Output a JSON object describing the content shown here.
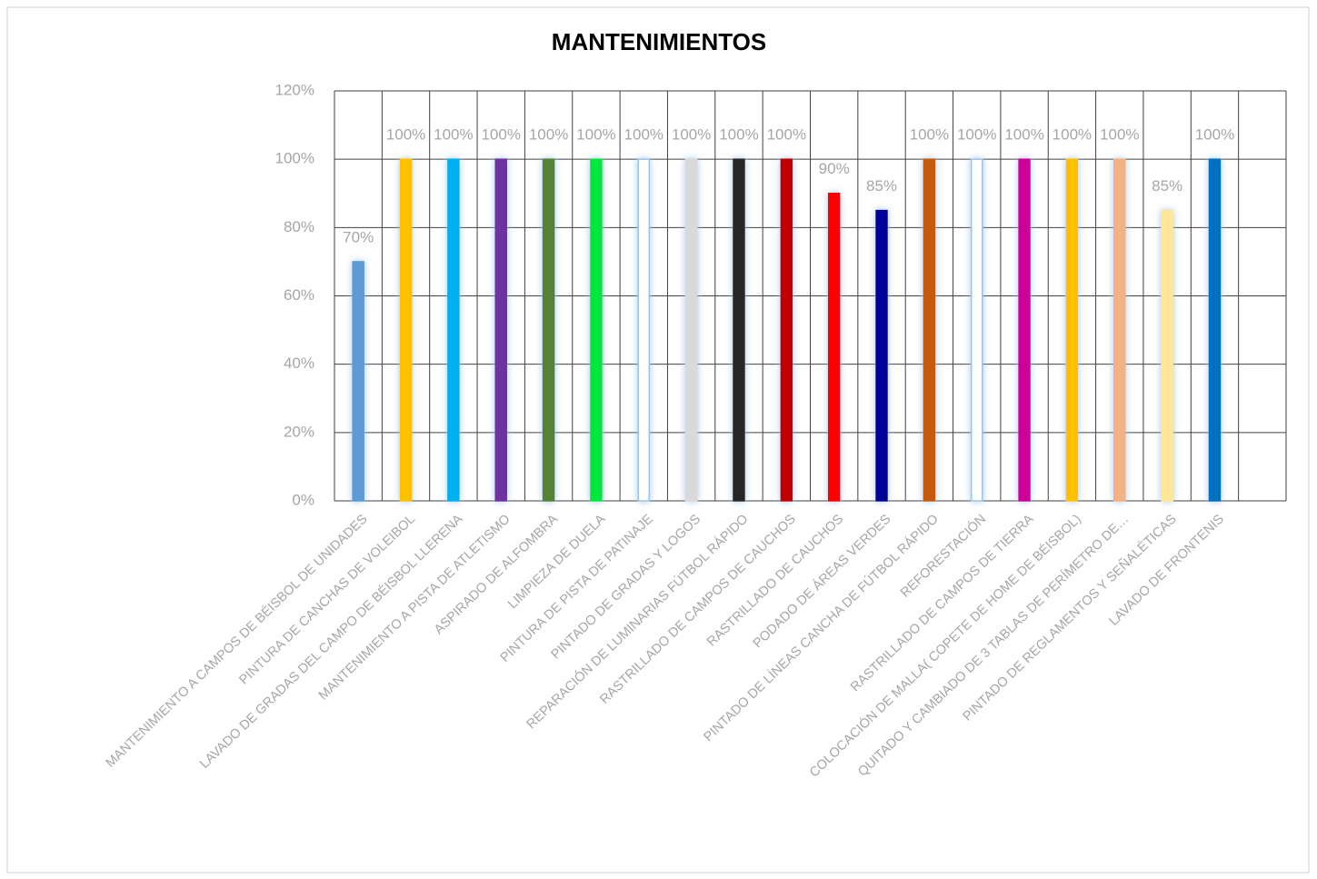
{
  "chart_data": {
    "type": "bar",
    "title": "MANTENIMIENTOS",
    "categories": [
      "MANTENIMIENTO A CAMPOS DE BÉISBOL DE UNIDADES",
      "PINTURA DE CANCHAS DE VOLEIBOL",
      "LAVADO DE GRADAS DEL CAMPO DE BÉISBOL LLERENA",
      "MANTENIMIENTO A PISTA DE ATLETISMO",
      "ASPIRADO DE ALFOMBRA",
      "LIMPIEZA DE DUELA",
      "PINTURA DE PISTA DE PATINAJE",
      "PINTADO DE GRADAS Y LOGOS",
      "REPARACIÓN DE LUMINARIAS FÚTBOL RÁPIDO",
      "RASTRILLADO DE CAMPOS DE CAUCHOS",
      "RASTRILLADO DE CAUCHOS",
      "PODADO DE ÁREAS VERDES",
      "PINTADO DE LÍNEAS CANCHA DE FÚTBOL RÁPIDO",
      "REFORESTACIÓN",
      "RASTRILLADO DE CAMPOS DE TIERRA",
      "COLOCACIÓN DE MALLA( COPETE DE HOME DE BÉISBOL)",
      "QUITADO Y CAMBIADO DE 3 TABLAS DE PERÍMETRO DE…",
      "PINTADO DE REGLAMENTOS Y SEÑALÉTICAS",
      "LAVADO DE FRONTENIS",
      null
    ],
    "values": [
      70,
      100,
      100,
      100,
      100,
      100,
      100,
      100,
      100,
      100,
      90,
      85,
      100,
      100,
      100,
      100,
      100,
      85,
      100,
      null
    ],
    "value_labels": [
      "70%",
      "100%",
      "100%",
      "100%",
      "100%",
      "100%",
      "100%",
      "100%",
      "100%",
      "100%",
      "90%",
      "85%",
      "100%",
      "100%",
      "100%",
      "100%",
      "100%",
      "85%",
      "100%",
      null
    ],
    "colors": [
      "#5b9bd5",
      "#ffc000",
      "#00b0f0",
      "#7030a0",
      "#548235",
      "#00e83c",
      "#ffffff",
      "#d9d9d9",
      "#262626",
      "#c00000",
      "#ff0000",
      "#000099",
      "#c55a11",
      "#ffffff",
      "#cc0099",
      "#ffc000",
      "#f4b183",
      "#ffe699",
      "#0070c0",
      null
    ],
    "ylim": [
      0,
      120
    ],
    "yticks": [
      {
        "value": 0,
        "label": "0%"
      },
      {
        "value": 20,
        "label": "20%"
      },
      {
        "value": 40,
        "label": "40%"
      },
      {
        "value": 60,
        "label": "60%"
      },
      {
        "value": 80,
        "label": "80%"
      },
      {
        "value": 100,
        "label": "100%"
      },
      {
        "value": 120,
        "label": "120%"
      }
    ],
    "grid": true
  }
}
